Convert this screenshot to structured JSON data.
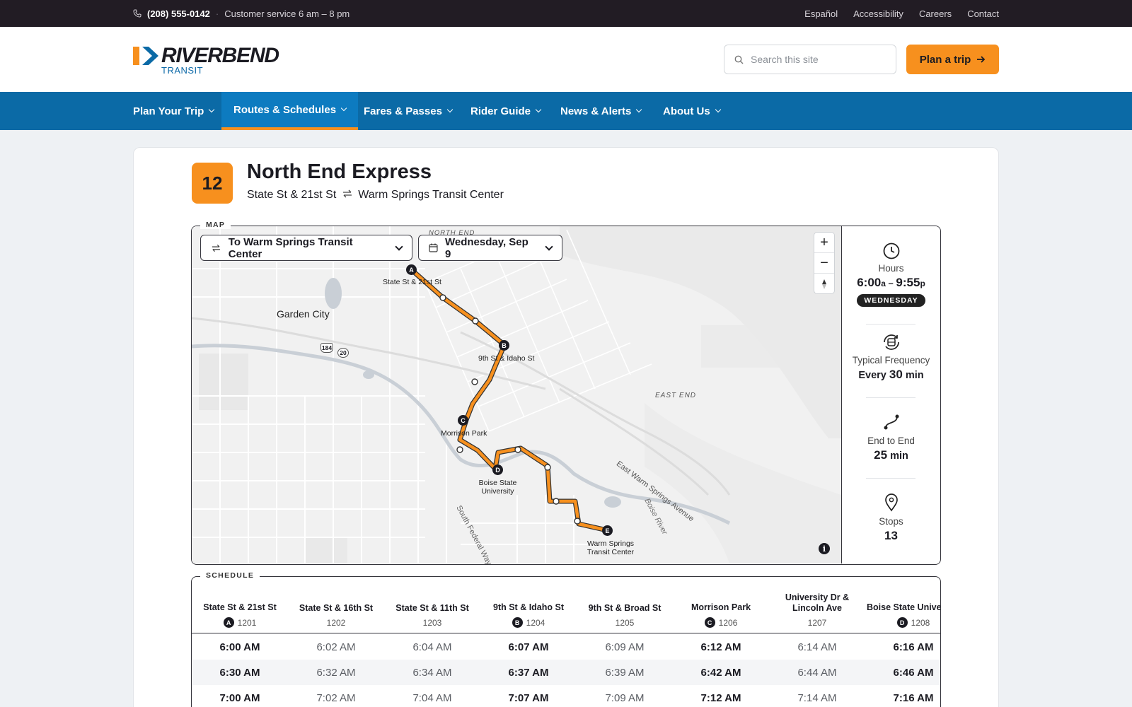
{
  "utility": {
    "phone": "(208) 555-0142",
    "hours": "Customer service 6 am – 8 pm",
    "links": [
      "Español",
      "Accessibility",
      "Careers",
      "Contact"
    ]
  },
  "header": {
    "logo_name": "RIVERBEND",
    "logo_sub": "TRANSIT",
    "search_placeholder": "Search this site",
    "plan_button": "Plan a trip"
  },
  "nav": {
    "items": [
      {
        "label": "Plan Your Trip"
      },
      {
        "label": "Routes & Schedules",
        "active": true
      },
      {
        "label": "Fares & Passes"
      },
      {
        "label": "Rider Guide"
      },
      {
        "label": "News & Alerts"
      },
      {
        "label": "About Us"
      }
    ]
  },
  "route": {
    "number": "12",
    "name": "North End Express",
    "from": "State St & 21st St",
    "to": "Warm Springs Transit Center"
  },
  "map": {
    "legend": "MAP",
    "direction_select": "To Warm Springs Transit Center",
    "date_select": "Wednesday, Sep 9",
    "labels": {
      "north_end": "NORTH END",
      "garden_city": "Garden City",
      "east_end": "EAST END",
      "warm_springs_ave": "East Warm Springs Avenue",
      "boise_river": "Boise River",
      "south_federal": "South Federal Way",
      "hwy1": "184",
      "hwy2": "20"
    },
    "timepoints": [
      {
        "letter": "A",
        "name": "State St & 21st St"
      },
      {
        "letter": "B",
        "name": "9th St & Idaho St"
      },
      {
        "letter": "C",
        "name": "Morrison Park"
      },
      {
        "letter": "D",
        "name": "Boise State University"
      },
      {
        "letter": "E",
        "name": "Warm Springs Transit Center"
      }
    ],
    "route_color": "#f7901e",
    "zoom_in": "+",
    "zoom_out": "−",
    "info": "i"
  },
  "stats": {
    "hours_label": "Hours",
    "hours_start": "6:00",
    "hours_start_suffix": "a",
    "hours_sep": " – ",
    "hours_end": "9:55",
    "hours_end_suffix": "p",
    "day": "WEDNESDAY",
    "freq_label": "Typical Frequency",
    "freq_prefix": "Every",
    "freq_value": "30",
    "freq_unit": "min",
    "end_label": "End to End",
    "end_value": "25",
    "end_unit": "min",
    "stops_label": "Stops",
    "stops_value": "13"
  },
  "schedule": {
    "legend": "SCHEDULE",
    "columns": [
      {
        "name": "State St & 21st St",
        "letter": "A",
        "id": "1201",
        "timepoint": true
      },
      {
        "name": "State St & 16th St",
        "letter": "",
        "id": "1202",
        "timepoint": false
      },
      {
        "name": "State St & 11th St",
        "letter": "",
        "id": "1203",
        "timepoint": false
      },
      {
        "name": "9th St & Idaho St",
        "letter": "B",
        "id": "1204",
        "timepoint": true
      },
      {
        "name": "9th St & Broad St",
        "letter": "",
        "id": "1205",
        "timepoint": false
      },
      {
        "name": "Morrison Park",
        "letter": "C",
        "id": "1206",
        "timepoint": true
      },
      {
        "name": "University Dr & Lincoln Ave",
        "letter": "",
        "id": "1207",
        "timepoint": false
      },
      {
        "name": "Boise State University",
        "letter": "D",
        "id": "1208",
        "timepoint": true
      }
    ],
    "rows": [
      [
        "6:00 AM",
        "6:02 AM",
        "6:04 AM",
        "6:07 AM",
        "6:09 AM",
        "6:12 AM",
        "6:14 AM",
        "6:16 AM"
      ],
      [
        "6:30 AM",
        "6:32 AM",
        "6:34 AM",
        "6:37 AM",
        "6:39 AM",
        "6:42 AM",
        "6:44 AM",
        "6:46 AM"
      ],
      [
        "7:00 AM",
        "7:02 AM",
        "7:04 AM",
        "7:07 AM",
        "7:09 AM",
        "7:12 AM",
        "7:14 AM",
        "7:16 AM"
      ]
    ]
  },
  "colors": {
    "brand_blue": "#0b6aa6",
    "accent_orange": "#f7901e",
    "dark": "#221c24"
  }
}
